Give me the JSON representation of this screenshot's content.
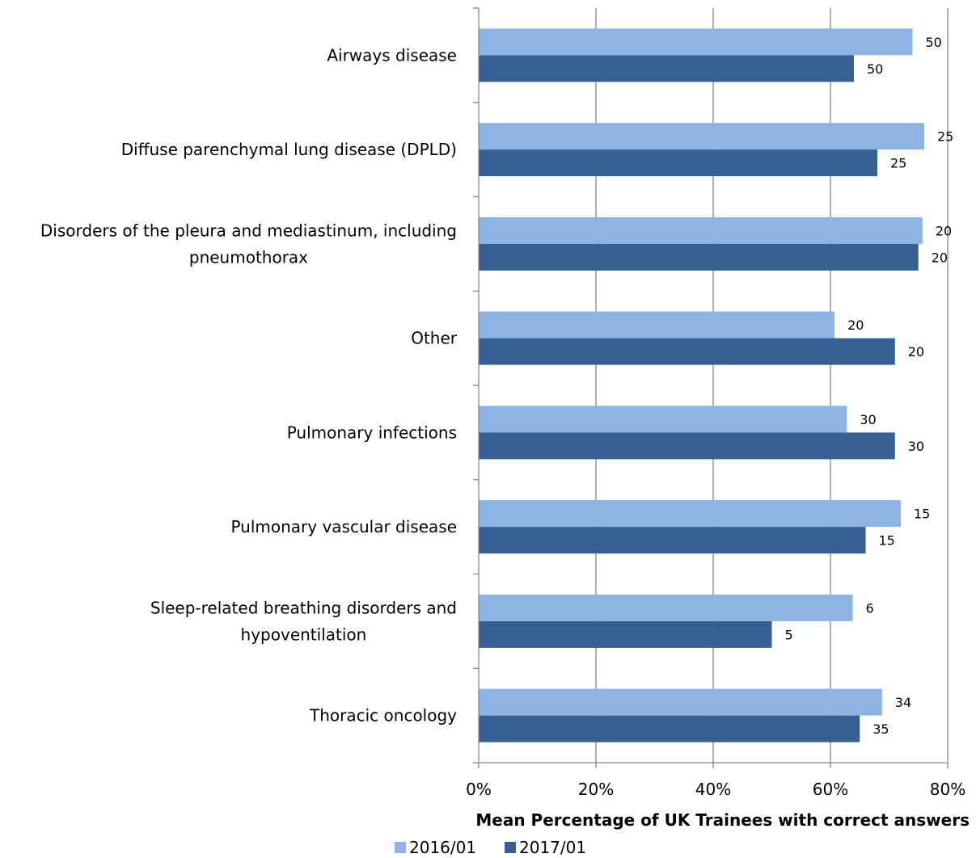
{
  "chart_data": {
    "type": "bar",
    "orientation": "horizontal",
    "xlabel": "Mean Percentage of UK Trainees with correct answers",
    "xlim": [
      0,
      80
    ],
    "xticks": [
      "0%",
      "20%",
      "40%",
      "60%",
      "80%"
    ],
    "grid": true,
    "legend_position": "bottom",
    "categories": [
      [
        "Airways disease"
      ],
      [
        "Diffuse parenchymal lung disease (DPLD)"
      ],
      [
        "Disorders of the pleura and mediastinum, including",
        "pneumothorax"
      ],
      [
        "Other"
      ],
      [
        "Pulmonary infections"
      ],
      [
        "Pulmonary vascular disease"
      ],
      [
        "Sleep-related breathing disorders and",
        "hypoventilation"
      ],
      [
        "Thoracic oncology"
      ]
    ],
    "series": [
      {
        "name": "2016/01",
        "color": "#8EB4E3",
        "values": [
          74,
          76,
          75.7,
          60.7,
          62.8,
          72,
          63.8,
          68.8
        ],
        "labels": [
          "50",
          "25",
          "20",
          "20",
          "30",
          "15",
          "6",
          "34"
        ]
      },
      {
        "name": "2017/01",
        "color": "#376092",
        "values": [
          64,
          68,
          75,
          71,
          71,
          66,
          50,
          65
        ],
        "labels": [
          "50",
          "25",
          "20",
          "20",
          "30",
          "15",
          "5",
          "35"
        ]
      }
    ]
  }
}
